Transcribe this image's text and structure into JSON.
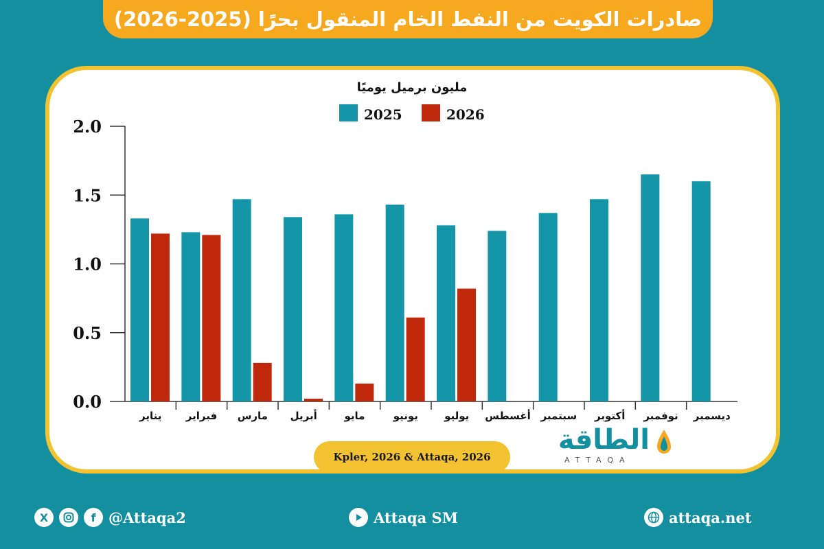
{
  "title": "صادرات الكويت من النفط الخام المنقول بحرًا (2025-2026)",
  "source": "Kpler, 2026 & Attaqa, 2026",
  "logo": {
    "arabic": "الطاقة",
    "latin": "ATTAQA"
  },
  "footer": {
    "social_handle": "@Attaqa2",
    "youtube": "Attaqa SM",
    "website": "attaqa.net"
  },
  "colors": {
    "series_2025": "#1596a8",
    "series_2026": "#c1290c",
    "accent": "#f6a81e",
    "background": "#138fa0"
  },
  "icons": [
    "x-icon",
    "instagram-icon",
    "facebook-icon",
    "youtube-icon",
    "globe-icon",
    "drop-icon"
  ],
  "chart_data": {
    "type": "bar",
    "ylabel": "مليون برميل يوميًا",
    "ylim": [
      0,
      2.0
    ],
    "yticks": [
      "0.0",
      "0.5",
      "1.0",
      "1.5",
      "2.0"
    ],
    "ytick_values": [
      0,
      0.5,
      1.0,
      1.5,
      2.0
    ],
    "categories": [
      "يناير",
      "فبراير",
      "مارس",
      "أبريل",
      "مايو",
      "يونيو",
      "يوليو",
      "أغسطس",
      "سبتمبر",
      "أكتوبر",
      "نوفمبر",
      "ديسمبر"
    ],
    "legend_position": "top-center",
    "grid": false,
    "series": [
      {
        "name": "2025",
        "values": [
          1.33,
          1.23,
          1.47,
          1.34,
          1.36,
          1.43,
          1.28,
          1.24,
          1.37,
          1.47,
          1.65,
          1.6
        ]
      },
      {
        "name": "2026",
        "values": [
          1.22,
          1.21,
          0.28,
          0.02,
          0.13,
          0.61,
          0.82,
          null,
          null,
          null,
          null,
          null
        ]
      }
    ]
  }
}
